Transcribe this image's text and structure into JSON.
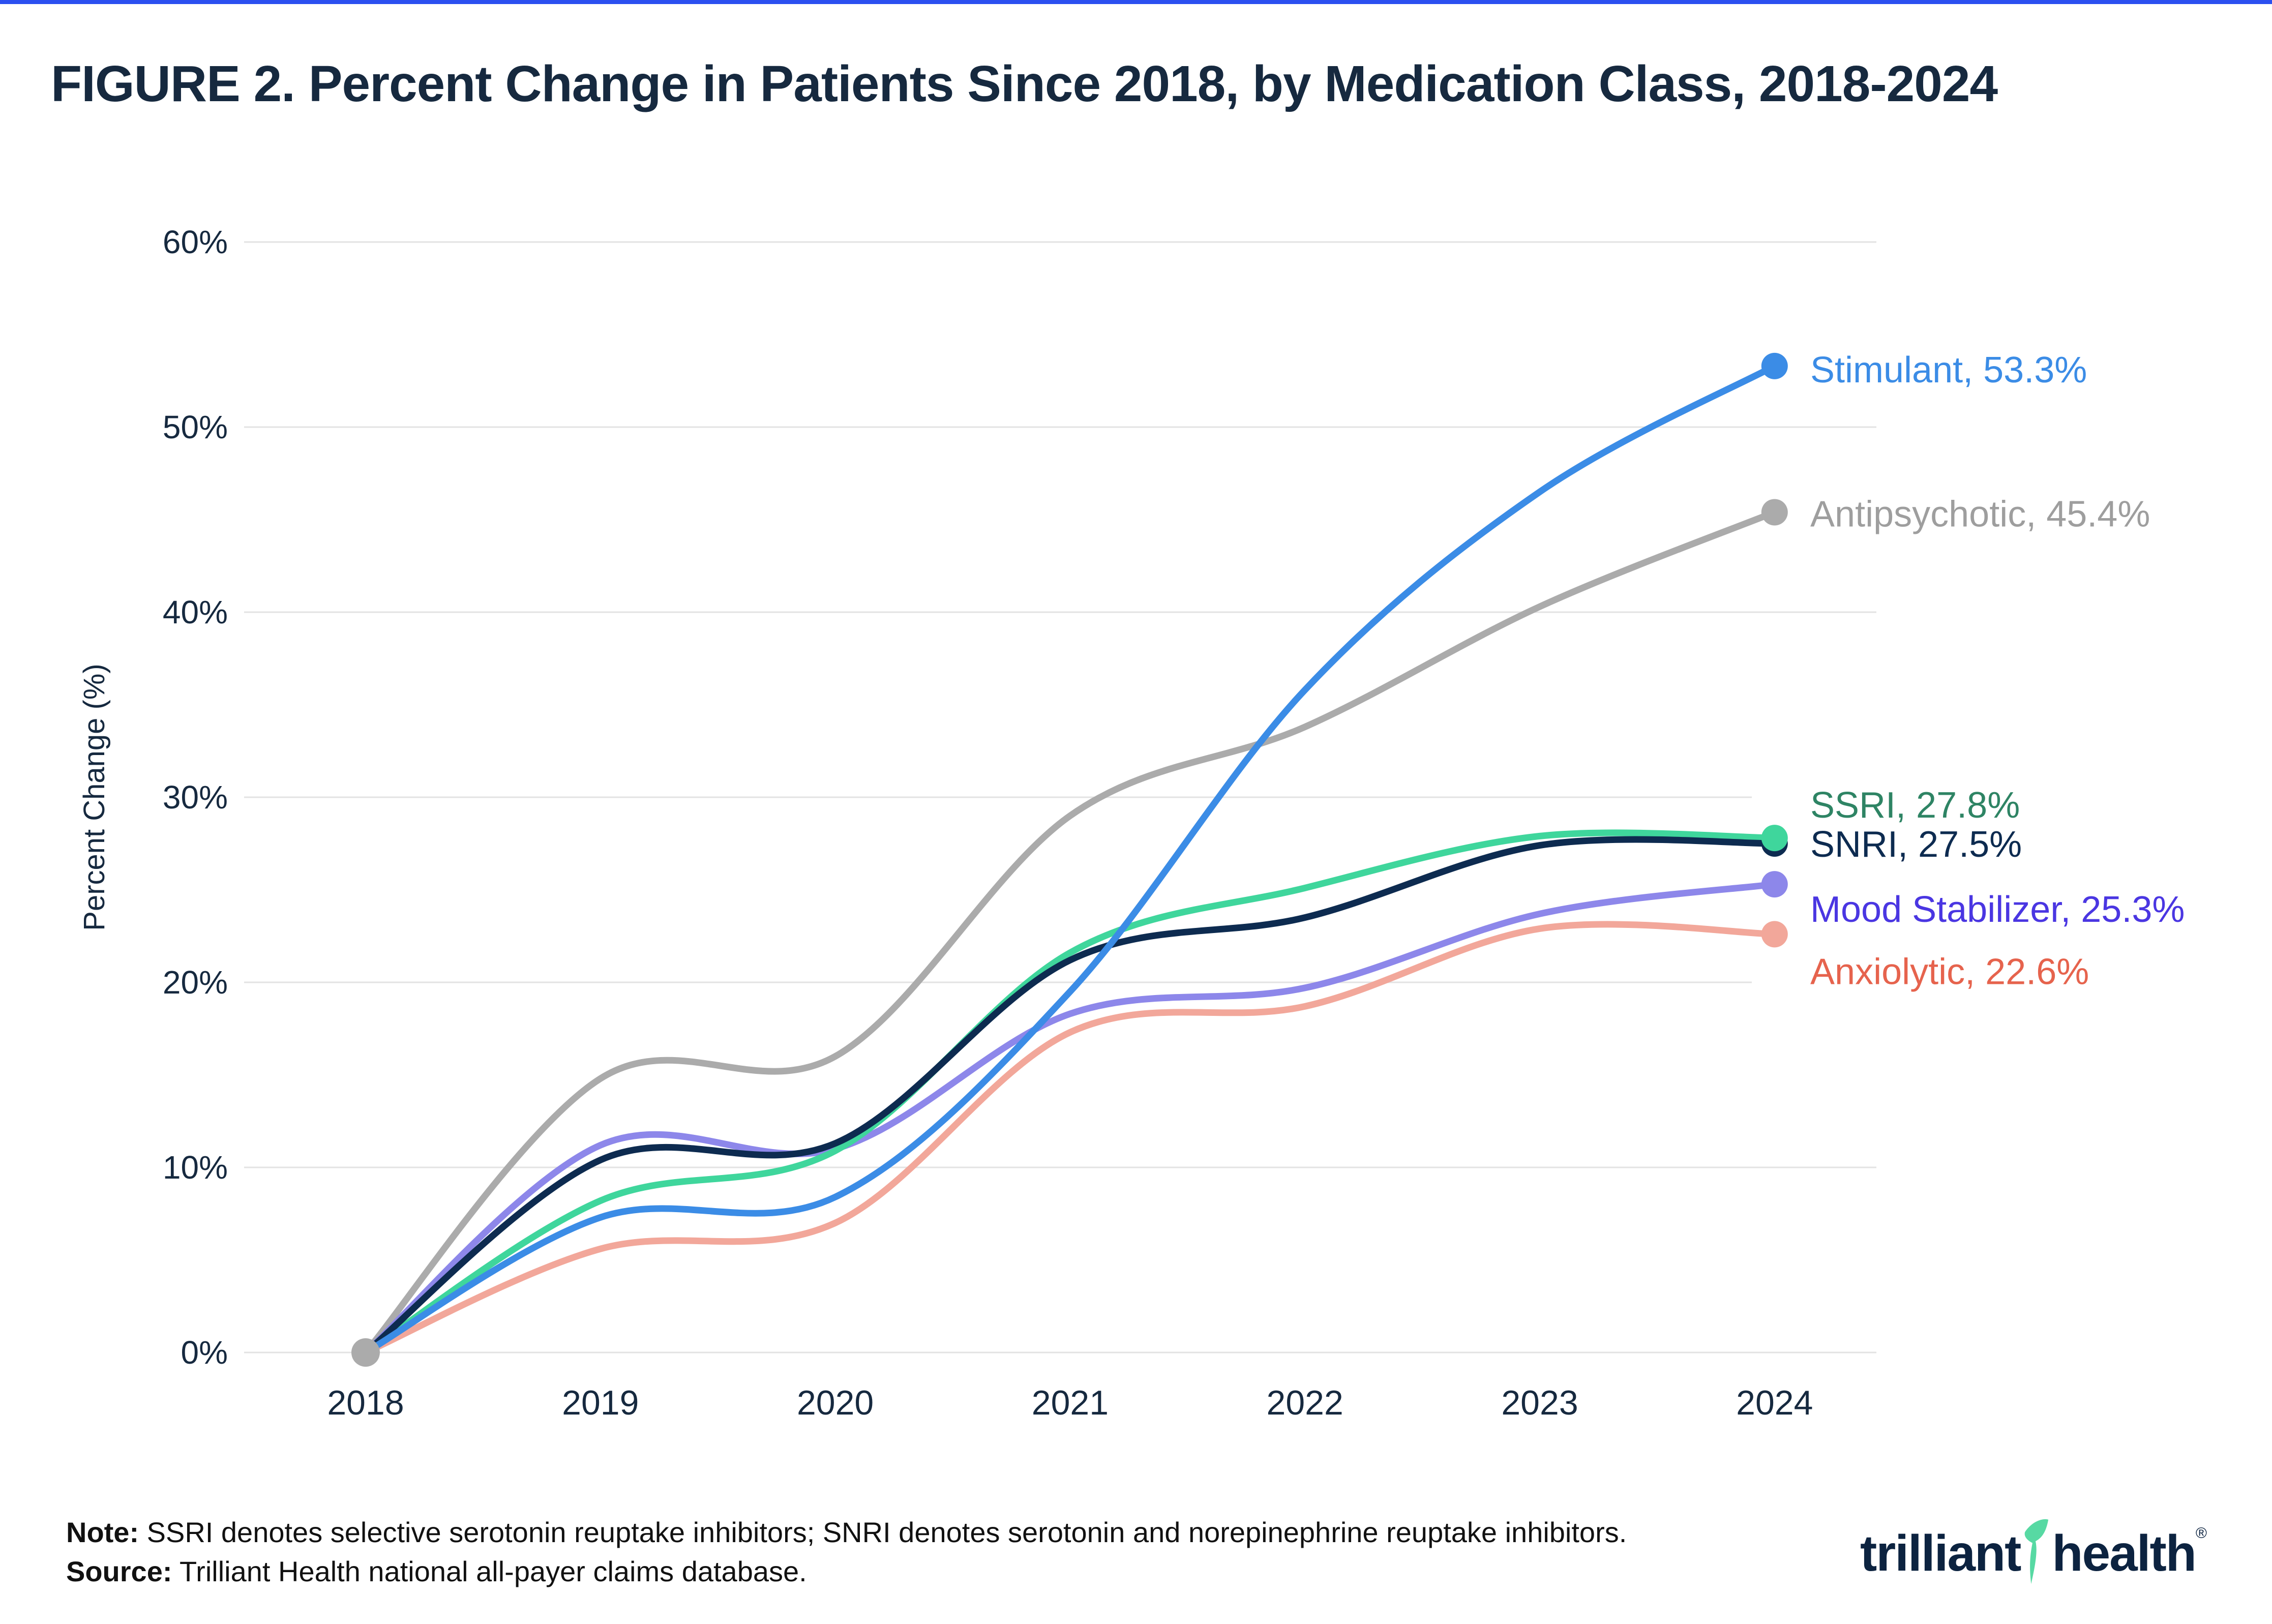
{
  "page": {
    "title": "FIGURE 2. Percent Change in Patients Since 2018, by Medication Class, 2018-2024",
    "title_color": "#16293f",
    "top_bar_color": "#2b4ff0",
    "background": "#ffffff"
  },
  "chart_data": {
    "type": "line",
    "title": "FIGURE 2. Percent Change in Patients Since 2018, by Medication Class, 2018-2024",
    "xlabel": "",
    "ylabel": "Percent Change (%)",
    "x": [
      2018,
      2019,
      2020,
      2021,
      2022,
      2023,
      2024
    ],
    "x_tick_labels": [
      "2018",
      "2019",
      "2020",
      "2021",
      "2022",
      "2023",
      "2024"
    ],
    "ylim": [
      0,
      60
    ],
    "y_tick_labels": [
      "0%",
      "10%",
      "20%",
      "30%",
      "40%",
      "50%",
      "60%"
    ],
    "grid": true,
    "gridline_color": "#e3e3e3",
    "axis_text_color": "#16293f",
    "legend_position": "right-end-labels",
    "start_marker": {
      "x": 2018,
      "value": 0,
      "color": "#ababab"
    },
    "series": [
      {
        "name": "Stimulant",
        "end_label": "Stimulant, 53.3%",
        "end_value": 53.3,
        "color": "#3b8ce6",
        "label_color": "#3b8ce6",
        "values": [
          0,
          7.3,
          8.4,
          19.5,
          35.8,
          46.5,
          53.3
        ]
      },
      {
        "name": "Antipsychotic",
        "end_label": "Antipsychotic, 45.4%",
        "end_value": 45.4,
        "color": "#ababab",
        "label_color": "#9e9e9e",
        "values": [
          0,
          14.8,
          16.0,
          29.0,
          33.8,
          40.3,
          45.4
        ]
      },
      {
        "name": "SSRI",
        "end_label": "SSRI, 27.8%",
        "end_value": 27.8,
        "color": "#3fd69c",
        "label_color": "#2e8464",
        "values": [
          0,
          8.2,
          10.9,
          21.6,
          25.1,
          27.9,
          27.8
        ]
      },
      {
        "name": "SNRI",
        "end_label": "SNRI, 27.5%",
        "end_value": 27.5,
        "color": "#0d2b50",
        "label_color": "#0d2b50",
        "values": [
          0,
          10.4,
          11.3,
          21.2,
          23.5,
          27.4,
          27.5
        ]
      },
      {
        "name": "Mood Stabilizer",
        "end_label": "Mood Stabilizer, 25.3%",
        "end_value": 25.3,
        "color": "#8d87ea",
        "label_color": "#4a36e2",
        "values": [
          0,
          11.2,
          11.0,
          18.3,
          19.7,
          23.7,
          25.3
        ]
      },
      {
        "name": "Anxiolytic",
        "end_label": "Anxiolytic, 22.6%",
        "end_value": 22.6,
        "color": "#f2a79a",
        "label_color": "#e6634d",
        "values": [
          0,
          5.6,
          7.0,
          17.3,
          18.7,
          22.9,
          22.6
        ]
      }
    ]
  },
  "footer": {
    "note_label": "Note:",
    "note_text": " SSRI denotes selective serotonin reuptake inhibitors; SNRI denotes serotonin and norepinephrine reuptake inhibitors.",
    "source_label": "Source:",
    "source_text": " Trilliant Health national all-payer claims database."
  },
  "logo": {
    "part1": "trilliant",
    "part2": "health",
    "registered": "®",
    "navy": "#0c2340",
    "green": "#57d9a3"
  }
}
